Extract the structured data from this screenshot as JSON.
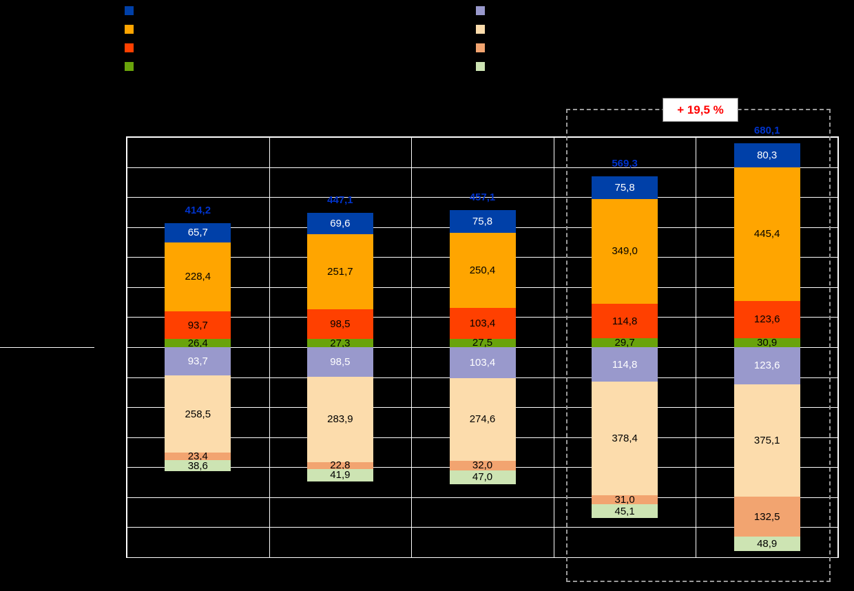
{
  "page": {
    "background": "#000000",
    "gridline_color": "#ffffff",
    "dashed_box_color": "#9b9b9b",
    "total_label_color": "#0033cc"
  },
  "annotation": {
    "text": "+ 19,5 %",
    "color": "#ff0000",
    "background": "#ffffff"
  },
  "legend": {
    "upper_swatches": [
      {
        "name": "upper-blue",
        "color": "#0040a8"
      },
      {
        "name": "upper-orange",
        "color": "#ffa500"
      },
      {
        "name": "upper-orangered",
        "color": "#ff4000"
      },
      {
        "name": "upper-green",
        "color": "#69a30b"
      }
    ],
    "lower_swatches": [
      {
        "name": "lower-lavender",
        "color": "#9999cc"
      },
      {
        "name": "lower-peach",
        "color": "#fcdcac"
      },
      {
        "name": "lower-salmon",
        "color": "#f2a470"
      },
      {
        "name": "lower-lightgreen",
        "color": "#cde4b3"
      }
    ]
  },
  "chart_data": {
    "type": "bar",
    "subtype": "diverging_stacked_mirror",
    "value_format": "decimal_comma",
    "axis": {
      "y_min": -700,
      "y_max": 700,
      "y_gridline_step": 100,
      "grid": true
    },
    "upper_series_colors": [
      {
        "name": "upper-blue",
        "color": "#0040a8",
        "label_color": "#ffffff"
      },
      {
        "name": "upper-orange",
        "color": "#ffa500",
        "label_color": "#000000"
      },
      {
        "name": "upper-orangered",
        "color": "#ff4000",
        "label_color": "#000000"
      },
      {
        "name": "upper-green",
        "color": "#69a30b",
        "label_color": "#000000"
      }
    ],
    "lower_series_colors": [
      {
        "name": "lower-lavender",
        "color": "#9999cc",
        "label_color": "#ffffff"
      },
      {
        "name": "lower-peach",
        "color": "#fcdcac",
        "label_color": "#000000"
      },
      {
        "name": "lower-salmon",
        "color": "#f2a470",
        "label_color": "#000000"
      },
      {
        "name": "lower-lightgreen",
        "color": "#cde4b3",
        "label_color": "#000000"
      }
    ],
    "groups": [
      {
        "total": 414.2,
        "total_label": "414,2",
        "upper": [
          {
            "value": 65.7,
            "label": "65,7"
          },
          {
            "value": 228.4,
            "label": "228,4"
          },
          {
            "value": 93.7,
            "label": "93,7"
          },
          {
            "value": 26.4,
            "label": "26,4"
          }
        ],
        "lower": [
          {
            "value": 93.7,
            "label": "93,7"
          },
          {
            "value": 258.5,
            "label": "258,5"
          },
          {
            "value": 23.4,
            "label": "23,4"
          },
          {
            "value": 38.6,
            "label": "38,6"
          }
        ]
      },
      {
        "total": 447.1,
        "total_label": "447,1",
        "upper": [
          {
            "value": 69.6,
            "label": "69,6"
          },
          {
            "value": 251.7,
            "label": "251,7"
          },
          {
            "value": 98.5,
            "label": "98,5"
          },
          {
            "value": 27.3,
            "label": "27,3"
          }
        ],
        "lower": [
          {
            "value": 98.5,
            "label": "98,5"
          },
          {
            "value": 283.9,
            "label": "283,9"
          },
          {
            "value": 22.8,
            "label": "22,8"
          },
          {
            "value": 41.9,
            "label": "41,9"
          }
        ]
      },
      {
        "total": 457.1,
        "total_label": "457,1",
        "upper": [
          {
            "value": 75.8,
            "label": "75,8"
          },
          {
            "value": 250.4,
            "label": "250,4"
          },
          {
            "value": 103.4,
            "label": "103,4"
          },
          {
            "value": 27.5,
            "label": "27,5"
          }
        ],
        "lower": [
          {
            "value": 103.4,
            "label": "103,4"
          },
          {
            "value": 274.6,
            "label": "274,6"
          },
          {
            "value": 32.0,
            "label": "32,0"
          },
          {
            "value": 47.0,
            "label": "47,0"
          }
        ]
      },
      {
        "total": 569.3,
        "total_label": "569,3",
        "upper": [
          {
            "value": 75.8,
            "label": "75,8"
          },
          {
            "value": 349.0,
            "label": "349,0"
          },
          {
            "value": 114.8,
            "label": "114,8"
          },
          {
            "value": 29.7,
            "label": "29,7"
          }
        ],
        "lower": [
          {
            "value": 114.8,
            "label": "114,8"
          },
          {
            "value": 378.4,
            "label": "378,4"
          },
          {
            "value": 31.0,
            "label": "31,0"
          },
          {
            "value": 45.1,
            "label": "45,1"
          }
        ]
      },
      {
        "total": 680.1,
        "total_label": "680,1",
        "upper": [
          {
            "value": 80.3,
            "label": "80,3"
          },
          {
            "value": 445.4,
            "label": "445,4"
          },
          {
            "value": 123.6,
            "label": "123,6"
          },
          {
            "value": 30.9,
            "label": "30,9"
          }
        ],
        "lower": [
          {
            "value": 123.6,
            "label": "123,6"
          },
          {
            "value": 375.1,
            "label": "375,1"
          },
          {
            "value": 132.5,
            "label": "132,5"
          },
          {
            "value": 48.9,
            "label": "48,9"
          }
        ]
      }
    ],
    "highlight": {
      "group_indexes": [
        3,
        4
      ],
      "annotation": "+ 19,5 %"
    }
  }
}
